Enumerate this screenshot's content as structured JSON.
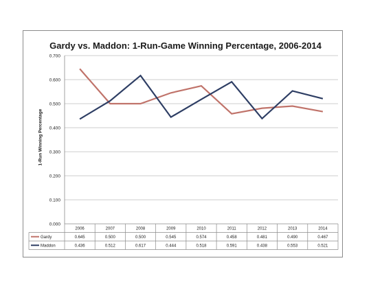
{
  "chart_data": {
    "type": "line",
    "title": "Gardy vs. Maddon: 1-Run-Game Winning Percentage, 2006-2014",
    "xlabel": "",
    "ylabel": "1-Run Winning Percentage",
    "ylim": [
      0,
      0.7
    ],
    "yticks": [
      "0.000",
      "0.100",
      "0.200",
      "0.300",
      "0.400",
      "0.500",
      "0.600",
      "0.700"
    ],
    "grid": true,
    "legend": "data-table",
    "x": [
      "2006",
      "2007",
      "2008",
      "2009",
      "2010",
      "2011",
      "2012",
      "2013",
      "2014"
    ],
    "series": [
      {
        "name": "Gardy",
        "color": "#c0736a",
        "values": [
          0.645,
          0.5,
          0.5,
          0.545,
          0.574,
          0.458,
          0.481,
          0.49,
          0.467
        ],
        "labels": [
          "0.645",
          "0.500",
          "0.500",
          "0.545",
          "0.574",
          "0.458",
          "0.481",
          "0.490",
          "0.467"
        ]
      },
      {
        "name": "Maddon",
        "color": "#2e3e64",
        "values": [
          0.436,
          0.512,
          0.617,
          0.444,
          0.518,
          0.591,
          0.438,
          0.553,
          0.521
        ],
        "labels": [
          "0.436",
          "0.512",
          "0.617",
          "0.444",
          "0.518",
          "0.591",
          "0.438",
          "0.553",
          "0.521"
        ]
      }
    ]
  }
}
